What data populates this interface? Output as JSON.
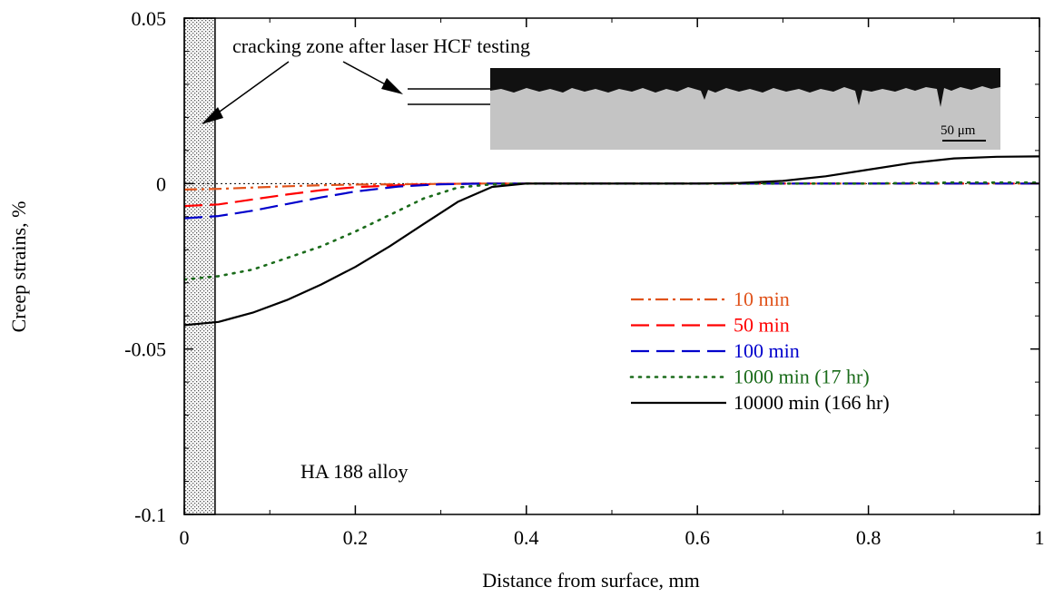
{
  "chart_data": {
    "type": "line",
    "xlabel": "Distance from surface, mm",
    "ylabel": "Creep strains, %",
    "xlim": [
      0,
      1
    ],
    "ylim": [
      -0.1,
      0.05
    ],
    "x_ticks": [
      "0",
      "0.2",
      "0.4",
      "0.6",
      "0.8",
      "1"
    ],
    "x_tick_values": [
      0,
      0.2,
      0.4,
      0.6,
      0.8,
      1
    ],
    "y_ticks": [
      "0.05",
      "0",
      "-0.05",
      "-0.1"
    ],
    "y_tick_values": [
      0.05,
      0,
      -0.05,
      -0.1
    ],
    "grid": false,
    "legend_position": "center-right",
    "series": [
      {
        "name": "10 min",
        "color": "#e0521a",
        "dash": "dash-dot",
        "x": [
          0,
          0.04,
          0.08,
          0.12,
          0.16,
          0.2,
          0.25,
          0.3,
          0.35,
          0.4,
          0.5,
          0.6,
          0.7,
          0.8,
          0.9,
          1.0
        ],
        "y": [
          -0.0018,
          -0.0016,
          -0.0012,
          -0.0008,
          -0.0005,
          -0.0003,
          -0.0002,
          -0.0001,
          0,
          0,
          0,
          0,
          0,
          0,
          0,
          0
        ]
      },
      {
        "name": "50 min",
        "color": "#ff0000",
        "dash": "long-dash",
        "x": [
          0,
          0.04,
          0.08,
          0.12,
          0.16,
          0.2,
          0.25,
          0.3,
          0.35,
          0.4,
          0.5,
          0.6,
          0.7,
          0.8,
          0.9,
          1.0
        ],
        "y": [
          -0.0068,
          -0.0063,
          -0.0048,
          -0.0033,
          -0.002,
          -0.0011,
          -0.0005,
          -0.0001,
          0,
          0,
          0,
          0,
          0,
          0,
          0,
          0
        ]
      },
      {
        "name": "100 min",
        "color": "#0000cc",
        "dash": "long-dash",
        "x": [
          0,
          0.04,
          0.08,
          0.12,
          0.16,
          0.2,
          0.25,
          0.3,
          0.35,
          0.4,
          0.5,
          0.6,
          0.7,
          0.8,
          0.9,
          1.0
        ],
        "y": [
          -0.0105,
          -0.0098,
          -0.0082,
          -0.0062,
          -0.0042,
          -0.0024,
          -0.0009,
          -0.0002,
          0,
          0,
          0,
          0,
          0,
          0,
          0,
          0
        ]
      },
      {
        "name": "1000 min (17 hr)",
        "color": "#1a6b1a",
        "dash": "dotted",
        "x": [
          0,
          0.04,
          0.08,
          0.12,
          0.16,
          0.2,
          0.24,
          0.28,
          0.32,
          0.36,
          0.4,
          0.5,
          0.6,
          0.7,
          0.8,
          0.9,
          1.0
        ],
        "y": [
          -0.029,
          -0.028,
          -0.026,
          -0.0225,
          -0.019,
          -0.0145,
          -0.0095,
          -0.0045,
          -0.0012,
          -0.0002,
          0,
          0,
          0,
          0,
          0,
          0.0003,
          0.0003
        ]
      },
      {
        "name": "10000 min (166 hr)",
        "color": "#000000",
        "dash": "solid",
        "x": [
          0,
          0.04,
          0.08,
          0.12,
          0.16,
          0.2,
          0.24,
          0.28,
          0.32,
          0.36,
          0.4,
          0.45,
          0.5,
          0.55,
          0.6,
          0.65,
          0.7,
          0.75,
          0.8,
          0.85,
          0.9,
          0.95,
          1.0
        ],
        "y": [
          -0.0428,
          -0.0418,
          -0.039,
          -0.0352,
          -0.0305,
          -0.0252,
          -0.019,
          -0.0122,
          -0.0055,
          -0.001,
          0,
          0,
          0,
          0,
          0,
          0.0002,
          0.0008,
          0.0022,
          0.0042,
          0.0062,
          0.0076,
          0.0081,
          0.0082
        ]
      }
    ],
    "annotations": {
      "cracking_zone": "cracking zone after laser HCF testing",
      "cracking_zone_width_mm": 0.036,
      "alloy": "HA 188 alloy",
      "micrograph_scale": "50 μm"
    }
  }
}
